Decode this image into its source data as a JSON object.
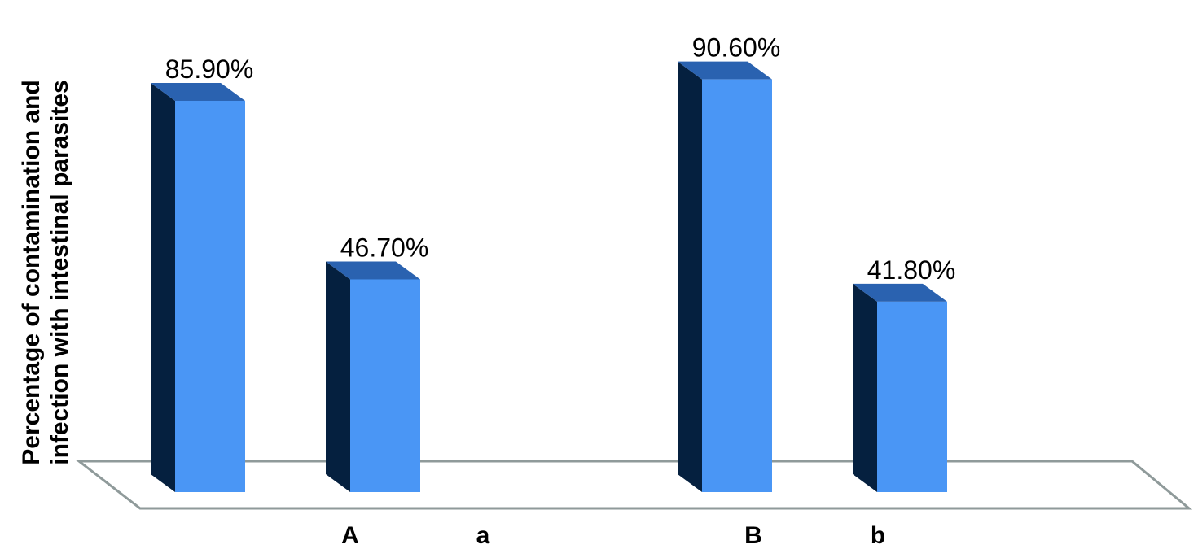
{
  "chart_data": {
    "type": "bar",
    "title": "",
    "ylabel_lines": [
      "Percentage of contamination and",
      "infection with intestinal parasites"
    ],
    "xlabel": "",
    "ylim": [
      0,
      100
    ],
    "grid": false,
    "legend": "none",
    "categories": [
      "A",
      "a",
      "B",
      "b"
    ],
    "bars": [
      {
        "value": 85.9,
        "label": "85.90%"
      },
      {
        "value": 46.7,
        "label": "46.70%"
      },
      {
        "value": 90.6,
        "label": "90.60%"
      },
      {
        "value": 41.8,
        "label": "41.80%"
      }
    ],
    "colors": {
      "front": "#4a96f5",
      "side": "#05203f",
      "top": "#2a62b0",
      "floor_stroke": "#8f9a9a",
      "text": "#000000"
    }
  }
}
